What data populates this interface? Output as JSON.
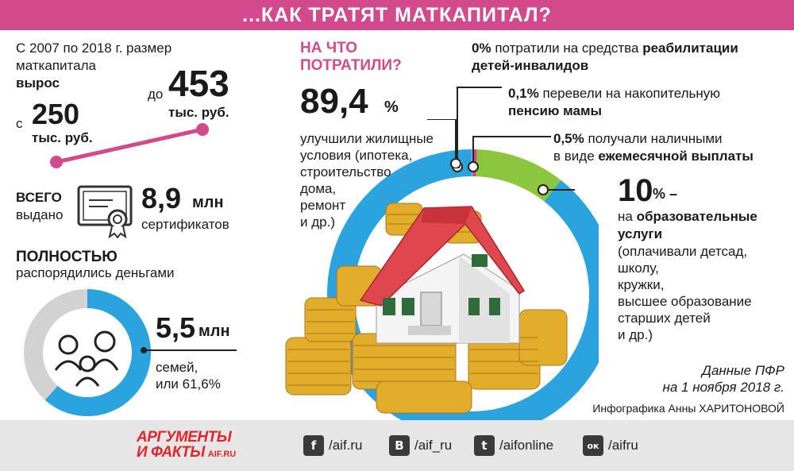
{
  "header": {
    "title": "...КАК ТРАТЯТ МАТКАПИТАЛ?"
  },
  "growth": {
    "intro_line1": "С 2007 по 2018 г. размер",
    "intro_line2": "маткапитала",
    "intro_line3": "вырос",
    "from_prefix": "с",
    "from_value": "250",
    "from_unit": "тыс. руб.",
    "to_prefix": "до",
    "to_value": "453",
    "to_unit": "тыс. руб."
  },
  "certificates": {
    "label_line1": "ВСЕГО",
    "label_line2": "выдано",
    "value": "8,9",
    "unit": "млн",
    "caption": "сертификатов"
  },
  "fully_used": {
    "title": "ПОЛНОСТЬЮ",
    "subtitle": "распорядились деньгами",
    "value": "5,5",
    "unit": "млн",
    "caption_line1": "семей,",
    "caption_line2": "или 61,6%",
    "share_percent": 61.6
  },
  "spending": {
    "title_line1": "НА ЧТО",
    "title_line2": "ПОТРАТИЛИ?",
    "housing": {
      "value": "89,4",
      "unit": "%",
      "lines": [
        "улучшили жилищные",
        "условия (ипотека,",
        "строительство",
        "дома,",
        "ремонт",
        "и др.)"
      ]
    },
    "rehab": {
      "value": "0%",
      "text_a": "потратили на средства",
      "text_b": "реабилитации",
      "text_c": "детей-инвалидов"
    },
    "pension": {
      "value": "0,1%",
      "text_a": "перевели на накопительную",
      "text_b": "пенсию мамы"
    },
    "monthly": {
      "value": "0,5%",
      "text_a": "получали наличными",
      "text_b": "в виде",
      "text_c": "ежемесячной выплаты"
    },
    "education": {
      "value": "10",
      "unit": "% –",
      "line1": "на",
      "line1b": "образовательные",
      "line2": "услуги",
      "lines": [
        "(оплачивали детсад,",
        "школу,",
        "кружки,",
        "высшее образование",
        "старших детей",
        "и др.)"
      ]
    }
  },
  "chart_data": [
    {
      "type": "pie",
      "categories": [
        "улучшили жилищные условия",
        "образовательные услуги",
        "ежемесячные выплаты",
        "накопительная пенсия мамы",
        "реабилитация детей-инвалидов"
      ],
      "values": [
        89.4,
        10,
        0.5,
        0.1,
        0
      ],
      "colors": [
        "#2aa3df",
        "#8cc63f",
        "#d34a8c",
        "#c2c2c2",
        "#c2c2c2"
      ]
    },
    {
      "type": "pie",
      "categories": [
        "распорядились полностью",
        "остальные"
      ],
      "values": [
        61.6,
        38.4
      ],
      "colors": [
        "#2aa3df",
        "#d2d2d2"
      ]
    }
  ],
  "source": {
    "line1": "Данные ПФР",
    "line2": "на 1 ноября 2018 г."
  },
  "credit": "Инфографика Анны ХАРИТОНОВОЙ",
  "footer": {
    "logo_line1": "АРГУМЕНТЫ",
    "logo_line2": "И ФАКТЫ",
    "logo_site": "AIF.RU",
    "social": [
      {
        "glyph": "f",
        "handle": "/aif.ru"
      },
      {
        "glyph": "B",
        "handle": "/aif_ru"
      },
      {
        "glyph": "t",
        "handle": "/aifonline"
      },
      {
        "glyph": "ок",
        "handle": "/aifru"
      }
    ]
  }
}
